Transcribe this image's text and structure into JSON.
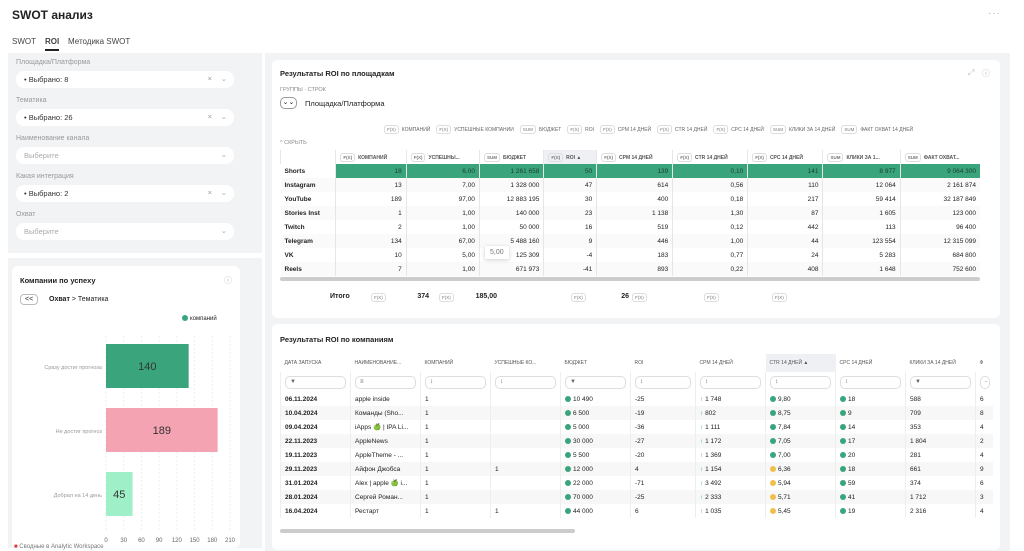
{
  "header": {
    "title": "SWOT анализ",
    "more": "···"
  },
  "tabs": [
    {
      "label": "SWOT"
    },
    {
      "label": "ROI",
      "active": true
    },
    {
      "label": "Методика SWOT"
    }
  ],
  "filters": [
    {
      "label": "Площадка/Платформа",
      "value": "Выбрано: 8",
      "clearable": true
    },
    {
      "label": "Тематика",
      "value": "Выбрано: 26",
      "clearable": true
    },
    {
      "label": "Наименование канала",
      "placeholder": "Выберите"
    },
    {
      "label": "Какая интеграция",
      "value": "Выбрано: 2",
      "clearable": true
    },
    {
      "label": "Охват",
      "placeholder": "Выберите"
    }
  ],
  "chart_card": {
    "title": "Компании по успеху",
    "back": "<<",
    "crumb1": "Охват",
    "crumb_sep": ">",
    "crumb2": "Тематика",
    "legend": "компаний"
  },
  "chart_data": {
    "type": "bar",
    "orientation": "horizontal",
    "categories": [
      "Сразу достиг прогноза",
      "Не достиг прогноз",
      "Добрал на 14 день"
    ],
    "values": [
      140,
      189,
      45
    ],
    "colors": [
      "#3aa57d",
      "#f4a3b3",
      "#9ff0c8"
    ],
    "xlim": [
      0,
      210
    ],
    "xticks": [
      0,
      30,
      60,
      90,
      120,
      150,
      180,
      210
    ],
    "legend": "компаний"
  },
  "roi_platforms": {
    "title": "Результаты ROI по площадкам",
    "groups_label": "Группы · строк",
    "group_value": "Площадка/Платформа",
    "hide": "Скрыть",
    "chips": [
      [
        "F(X)",
        "КОМПАНИЙ"
      ],
      [
        "F(X)",
        "УСПЕШНЫЕ КОМПАНИИ"
      ],
      [
        "SUM",
        "БЮДЖЕТ"
      ],
      [
        "F(X)",
        "ROI"
      ],
      [
        "F(X)",
        "CPM 14 ДНЕЙ"
      ],
      [
        "F(X)",
        "CTR 14 ДНЕЙ"
      ],
      [
        "F(X)",
        "CPC 14 ДНЕЙ"
      ],
      [
        "SUM",
        "КЛИКИ ЗА 14 ДНЕЙ"
      ],
      [
        "SUM",
        "ФАКТ ОХВАТ 14 ДНЕЙ"
      ]
    ],
    "columns": [
      [
        "F(X)",
        "КОМПАНИЙ"
      ],
      [
        "F(X)",
        "УСПЕШНЫ..."
      ],
      [
        "SUM",
        "БЮДЖЕТ"
      ],
      [
        "F(X)",
        "ROI ▲"
      ],
      [
        "F(X)",
        "CPM 14 ДНЕЙ"
      ],
      [
        "F(X)",
        "CTR 14 ДНЕЙ"
      ],
      [
        "F(X)",
        "CPC 14 ДНЕЙ"
      ],
      [
        "SUM",
        "КЛИКИ ЗА 1..."
      ],
      [
        "SUM",
        "ФАКТ ОХВАТ..."
      ]
    ],
    "rows": [
      [
        "Shorts",
        "18",
        "6,00",
        "1 261 658",
        "50",
        "139",
        "0,10",
        "141",
        "8 977",
        "9 064 300"
      ],
      [
        "Instagram",
        "13",
        "7,00",
        "1 328 000",
        "47",
        "614",
        "0,56",
        "110",
        "12 064",
        "2 161 874"
      ],
      [
        "YouTube",
        "189",
        "97,00",
        "12 883 195",
        "30",
        "400",
        "0,18",
        "217",
        "59 414",
        "32 187 849"
      ],
      [
        "Stories Inst",
        "1",
        "1,00",
        "140 000",
        "23",
        "1 138",
        "1,30",
        "87",
        "1 605",
        "123 000"
      ],
      [
        "Twitch",
        "2",
        "1,00",
        "50 000",
        "16",
        "519",
        "0,12",
        "442",
        "113",
        "96 400"
      ],
      [
        "Telegram",
        "134",
        "67,00",
        "5 488 160",
        "9",
        "446",
        "1,00",
        "44",
        "123 554",
        "12 315 099"
      ],
      [
        "VK",
        "10",
        "5,00",
        "125 309",
        "-4",
        "183",
        "0,77",
        "24",
        "5 283",
        "684 800"
      ],
      [
        "Reels",
        "7",
        "1,00",
        "671 973",
        "-41",
        "893",
        "0,22",
        "408",
        "1 648",
        "752 600"
      ]
    ],
    "tooltip": "5,00",
    "total_label": "Итого",
    "totals": [
      "374",
      "185,00",
      "",
      "26"
    ]
  },
  "roi_companies": {
    "title": "Результаты ROI по компаниям",
    "columns": [
      "ДАТА ЗАПУСКА",
      "НАИМЕНОВАНИЕ...",
      "КОМПАНИЙ",
      "УСПЕШНЫЕ КО...",
      "БЮДЖЕТ",
      "ROI",
      "CPM 14 ДНЕЙ",
      "CTR 14 ДНЕЙ ▲",
      "CPC 14 ДНЕЙ",
      "КЛИКИ ЗА 14 ДНЕЙ",
      "Ф"
    ],
    "filters": [
      "▼",
      "≡",
      "↕",
      "↕",
      "▼",
      "↕",
      "↕",
      "↕",
      "↕",
      "▼",
      "-"
    ],
    "rows": [
      [
        "06.11.2024",
        "apple inside",
        "1",
        "",
        "10 490",
        "-25",
        "1 748",
        "9,80",
        "18",
        "588",
        "6",
        "green"
      ],
      [
        "10.04.2024",
        "Команды (Sho...",
        "1",
        "",
        "6 500",
        "-19",
        "802",
        "8,75",
        "9",
        "709",
        "8",
        "green"
      ],
      [
        "09.04.2024",
        "iApps 🍏 | IPA Li...",
        "1",
        "",
        "5 000",
        "-36",
        "1 111",
        "7,84",
        "14",
        "353",
        "4",
        "green"
      ],
      [
        "22.11.2023",
        "AppleNews",
        "1",
        "",
        "30 000",
        "-27",
        "1 172",
        "7,05",
        "17",
        "1 804",
        "2",
        "green"
      ],
      [
        "19.11.2023",
        "AppleTheme - ...",
        "1",
        "",
        "5 500",
        "-20",
        "1 369",
        "7,00",
        "20",
        "281",
        "4",
        "green"
      ],
      [
        "29.11.2023",
        "Айфон Джобса",
        "1",
        "1",
        "12 000",
        "4",
        "1 154",
        "6,36",
        "18",
        "661",
        "9",
        "yellow"
      ],
      [
        "31.01.2024",
        "Alex | apple 🍏 i...",
        "1",
        "",
        "22 000",
        "-71",
        "3 492",
        "5,94",
        "59",
        "374",
        "6",
        "yellow"
      ],
      [
        "28.01.2024",
        "Сергей Роман...",
        "1",
        "",
        "70 000",
        "-25",
        "2 333",
        "5,71",
        "41",
        "1 712",
        "3",
        "yellow"
      ],
      [
        "16.04.2024",
        "Рестарт",
        "1",
        "1",
        "44 000",
        "6",
        "1 035",
        "5,45",
        "19",
        "2 316",
        "4",
        "yellow"
      ]
    ]
  },
  "footer": {
    "text": "Сводные в Analytic Workspace"
  },
  "colors": {
    "accent": "#3aa57d",
    "green_dot": "#3aa57d",
    "yellow_dot": "#f0c04a",
    "up_arrow": "#3aa57d"
  }
}
